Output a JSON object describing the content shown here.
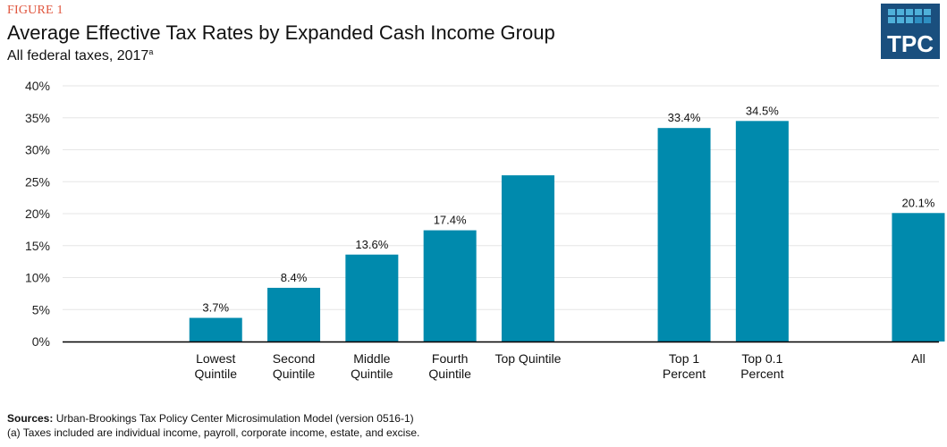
{
  "figure_label": "FIGURE 1",
  "logo": {
    "text": "TPC",
    "colors": {
      "background": "#1a4f7e",
      "tile_light": "#4fb0d9",
      "tile_mid": "#2e8fc2"
    }
  },
  "colors": {
    "bar": "#008aad",
    "grid": "#e6e6e6",
    "axis": "#000000",
    "figure_label": "#e0553d"
  },
  "chart_data": {
    "type": "bar",
    "title": "Average Effective Tax Rates by Expanded Cash Income Group",
    "subtitle": "All federal taxes, 2017",
    "subtitle_footnote": "a",
    "xlabel": "",
    "ylabel": "",
    "ylim": [
      0,
      40
    ],
    "yticks": [
      0,
      5,
      10,
      15,
      20,
      25,
      30,
      35,
      40
    ],
    "ytick_labels": [
      "0%",
      "5%",
      "10%",
      "15%",
      "20%",
      "25%",
      "30%",
      "35%",
      "40%"
    ],
    "grid": true,
    "legend": "none",
    "categories": [
      [
        "Lowest",
        "Quintile"
      ],
      [
        "Second",
        "Quintile"
      ],
      [
        "Middle",
        "Quintile"
      ],
      [
        "Fourth",
        "Quintile"
      ],
      [
        "Top Quintile"
      ],
      [
        "Top 1",
        "Percent"
      ],
      [
        "Top 0.1",
        "Percent"
      ],
      [
        "All"
      ]
    ],
    "values": [
      3.7,
      8.4,
      13.6,
      17.4,
      26.0,
      33.4,
      34.5,
      20.1
    ],
    "data_labels": [
      "3.7%",
      "8.4%",
      "13.6%",
      "17.4%",
      "",
      "33.4%",
      "34.5%",
      "20.1%"
    ],
    "slots": [
      2,
      3,
      4,
      5,
      6,
      8,
      9,
      11
    ]
  },
  "footer": {
    "sources_label": "Sources:",
    "sources_text": " Urban-Brookings Tax Policy Center Microsimulation Model (version 0516-1)",
    "note": "(a) Taxes included are individual income, payroll, corporate income, estate, and excise."
  }
}
